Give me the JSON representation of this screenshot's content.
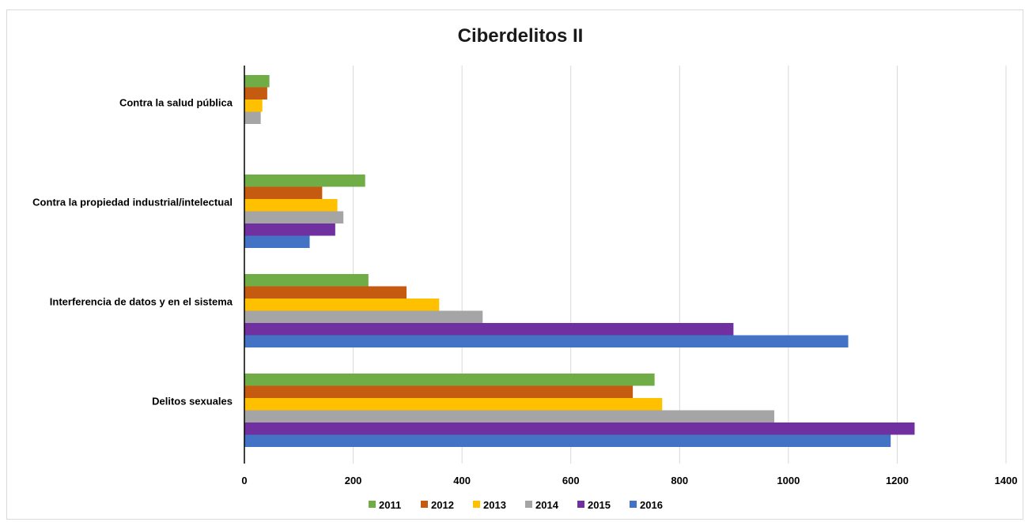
{
  "chart_data": {
    "type": "bar",
    "orientation": "horizontal",
    "title": "Ciberdelitos II",
    "categories": [
      "Contra la salud pública",
      "Contra la propiedad industrial/intelectual",
      "Interferencia de datos y en el sistema",
      "Delitos sexuales"
    ],
    "series": [
      {
        "name": "2011",
        "color": "#70ad47",
        "values": [
          46,
          222,
          228,
          754
        ]
      },
      {
        "name": "2012",
        "color": "#c55a11",
        "values": [
          42,
          143,
          298,
          714
        ]
      },
      {
        "name": "2013",
        "color": "#ffc000",
        "values": [
          33,
          171,
          358,
          768
        ]
      },
      {
        "name": "2014",
        "color": "#a5a5a5",
        "values": [
          30,
          182,
          438,
          974
        ]
      },
      {
        "name": "2015",
        "color": "#7030a0",
        "values": [
          null,
          167,
          899,
          1232
        ]
      },
      {
        "name": "2016",
        "color": "#4472c4",
        "values": [
          null,
          120,
          1110,
          1188
        ]
      }
    ],
    "xlim": [
      0,
      1400
    ],
    "x_ticks": [
      0,
      200,
      400,
      600,
      800,
      1000,
      1200,
      1400
    ],
    "grid": "vertical",
    "legend_position": "bottom"
  }
}
